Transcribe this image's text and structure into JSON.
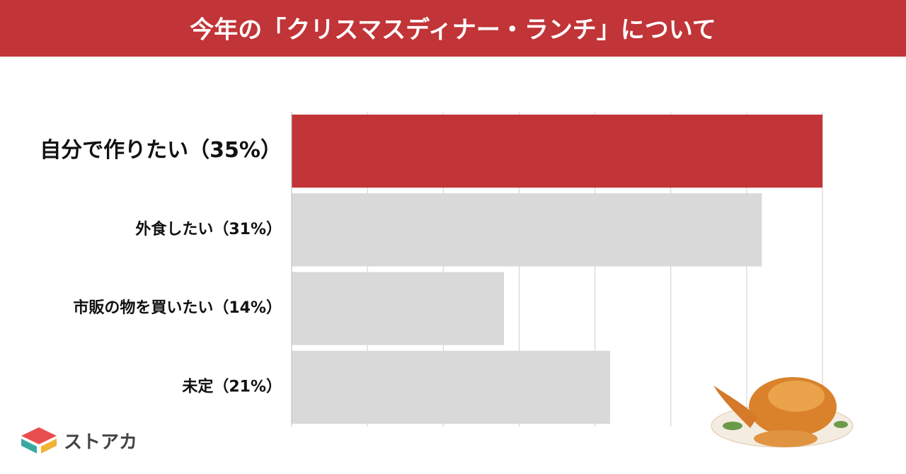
{
  "chart_data": {
    "type": "bar",
    "orientation": "horizontal",
    "title": "今年の「クリスマスディナー・ランチ」について",
    "categories": [
      "自分で作りたい（35%）",
      "外食したい（31%）",
      "市販の物を買いたい（14%）",
      "未定（21%）"
    ],
    "values": [
      35,
      31,
      14,
      21
    ],
    "colors": [
      "#c13437",
      "#d9d9d9",
      "#d9d9d9",
      "#d9d9d9"
    ],
    "xlim": [
      0,
      35
    ],
    "xticks": [
      0,
      5,
      10,
      15,
      20,
      25,
      30,
      35
    ],
    "grid": true
  },
  "logo_text": "ストアカ"
}
